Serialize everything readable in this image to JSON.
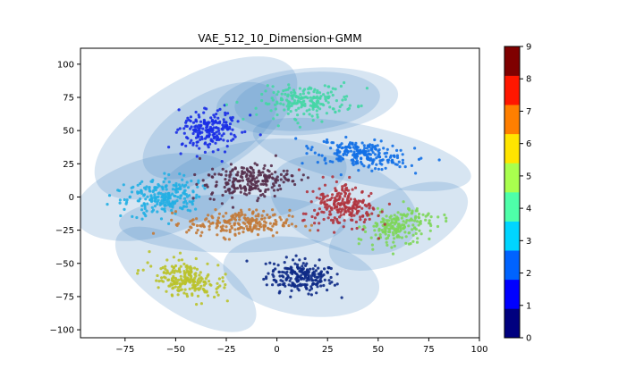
{
  "chart_data": {
    "type": "scatter",
    "title": "VAE_512_10_Dimension+GMM",
    "xlabel": "",
    "ylabel": "",
    "xlim": [
      -97,
      100
    ],
    "ylim": [
      -106,
      112
    ],
    "xticks": [
      -75,
      -50,
      -25,
      0,
      25,
      50,
      75,
      100
    ],
    "xtick_labels": [
      "−75",
      "−50",
      "−25",
      "0",
      "25",
      "50",
      "75",
      "100"
    ],
    "yticks": [
      -100,
      -75,
      -50,
      -25,
      0,
      25,
      50,
      75,
      100
    ],
    "ytick_labels": [
      "−100",
      "−75",
      "−50",
      "−25",
      "0",
      "25",
      "50",
      "75",
      "100"
    ],
    "grid": false,
    "colorbar": {
      "min": 0,
      "max": 9,
      "ticks": [
        0,
        1,
        2,
        3,
        4,
        5,
        6,
        7,
        8,
        9
      ],
      "tick_labels": [
        "0",
        "1",
        "2",
        "3",
        "4",
        "5",
        "6",
        "7",
        "8",
        "9"
      ],
      "colors": [
        "#00007f",
        "#0000ff",
        "#0063ff",
        "#00d5ff",
        "#4effa9",
        "#a9ff4e",
        "#ffe500",
        "#ff7f00",
        "#ff1700",
        "#7f0000"
      ]
    },
    "gmm_color": "#4a8ac4",
    "clusters": [
      {
        "label": 0,
        "center": [
          12,
          -60
        ],
        "spread": [
          15,
          11
        ],
        "angle": -10,
        "color": "#0e2a86",
        "count": 220
      },
      {
        "label": 1,
        "center": [
          -33,
          50
        ],
        "spread": [
          15,
          12
        ],
        "angle": 35,
        "color": "#1a2ee6",
        "count": 200
      },
      {
        "label": 2,
        "center": [
          42,
          32
        ],
        "spread": [
          22,
          9
        ],
        "angle": -12,
        "color": "#1370e6",
        "count": 230
      },
      {
        "label": 3,
        "center": [
          -57,
          0
        ],
        "spread": [
          17,
          13
        ],
        "angle": 15,
        "color": "#22afe3",
        "count": 230
      },
      {
        "label": 4,
        "center": [
          15,
          72
        ],
        "spread": [
          21,
          11
        ],
        "angle": 5,
        "color": "#45d6a5",
        "count": 200
      },
      {
        "label": 5,
        "center": [
          60,
          -22
        ],
        "spread": [
          16,
          11
        ],
        "angle": 25,
        "color": "#7ed65a",
        "count": 200
      },
      {
        "label": 6,
        "center": [
          -45,
          -62
        ],
        "spread": [
          16,
          11
        ],
        "angle": -33,
        "color": "#bac22a",
        "count": 210
      },
      {
        "label": 7,
        "center": [
          -19,
          -20
        ],
        "spread": [
          23,
          9
        ],
        "angle": 0,
        "color": "#c27a3a",
        "count": 220
      },
      {
        "label": 8,
        "center": [
          33,
          -6
        ],
        "spread": [
          16,
          15
        ],
        "angle": -20,
        "color": "#b0343e",
        "count": 230
      },
      {
        "label": 9,
        "center": [
          -14,
          12
        ],
        "spread": [
          19,
          11
        ],
        "angle": 10,
        "color": "#552f4b",
        "count": 230
      }
    ],
    "gmm_components": [
      {
        "center": [
          12,
          -60
        ],
        "radii": [
          39,
          29
        ],
        "angle": -10
      },
      {
        "center": [
          -33,
          50
        ],
        "radii": [
          37,
          27
        ],
        "angle": 30
      },
      {
        "center": [
          -40,
          52
        ],
        "radii": [
          56,
          38
        ],
        "angle": 30
      },
      {
        "center": [
          42,
          32
        ],
        "radii": [
          55,
          22
        ],
        "angle": -12
      },
      {
        "center": [
          -60,
          0
        ],
        "radii": [
          41,
          30
        ],
        "angle": 15
      },
      {
        "center": [
          15,
          72
        ],
        "radii": [
          45,
          25
        ],
        "angle": 5
      },
      {
        "center": [
          15,
          72
        ],
        "radii": [
          36,
          22
        ],
        "angle": 5
      },
      {
        "center": [
          60,
          -22
        ],
        "radii": [
          37,
          26
        ],
        "angle": 25
      },
      {
        "center": [
          -45,
          -62
        ],
        "radii": [
          40,
          26
        ],
        "angle": -33
      },
      {
        "center": [
          -22,
          -20
        ],
        "radii": [
          56,
          22
        ],
        "angle": 0
      },
      {
        "center": [
          33,
          -6
        ],
        "radii": [
          38,
          34
        ],
        "angle": -20
      },
      {
        "center": [
          -12,
          12
        ],
        "radii": [
          47,
          30
        ],
        "angle": 10
      }
    ]
  }
}
